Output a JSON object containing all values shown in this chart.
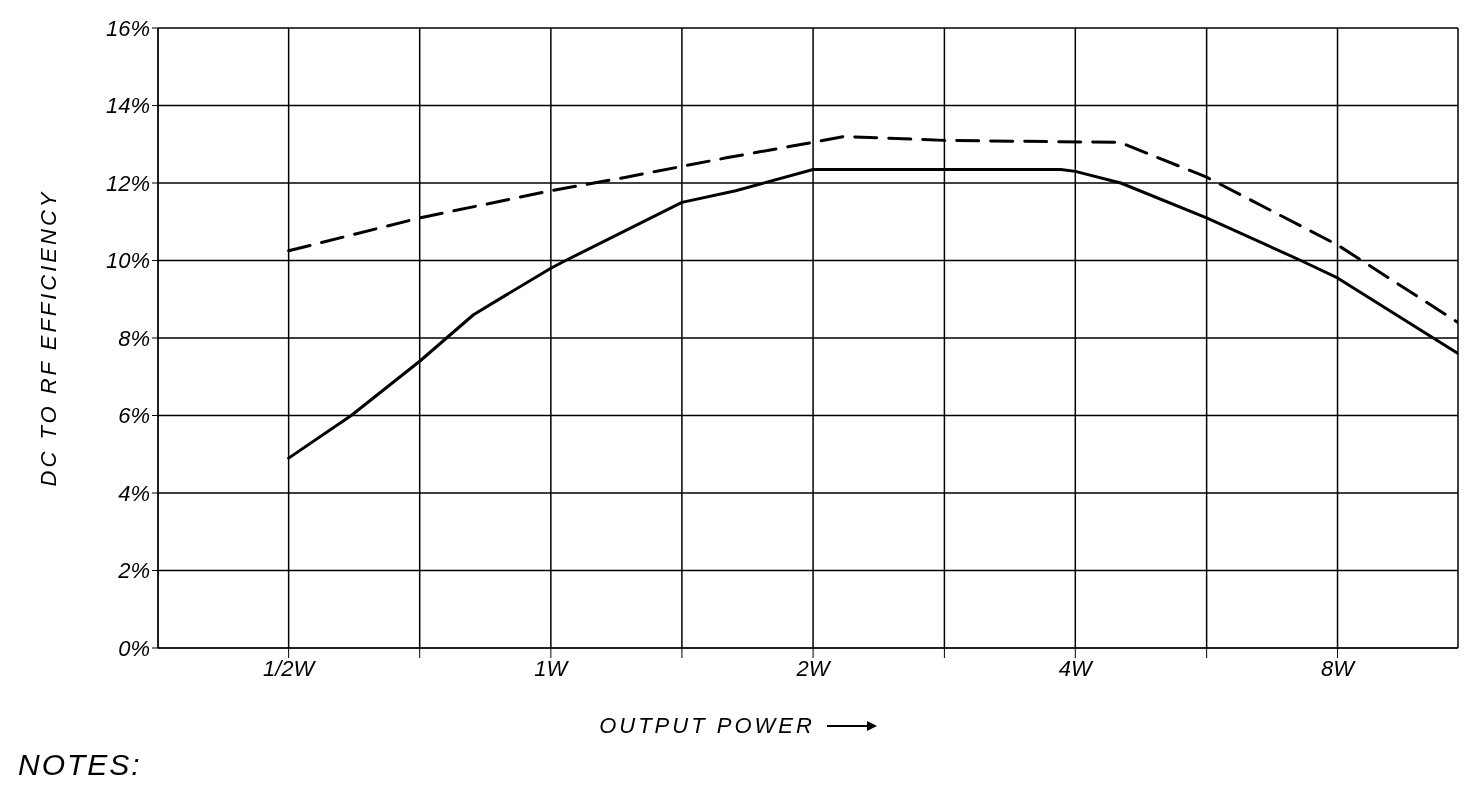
{
  "chart_data": {
    "type": "line",
    "xlabel": "OUTPUT POWER",
    "ylabel": "DC TO RF EFFICIENCY",
    "annotations": [
      "NOTES:"
    ],
    "log": "x",
    "grid": true,
    "marker": "none",
    "xlim": [
      0.354,
      11
    ],
    "xticks": [
      {
        "value": 0.5,
        "label": "1/2W"
      },
      {
        "value": 0.707,
        "label": null
      },
      {
        "value": 1,
        "label": "1W"
      },
      {
        "value": 1.414,
        "label": null
      },
      {
        "value": 2,
        "label": "2W"
      },
      {
        "value": 2.83,
        "label": null
      },
      {
        "value": 4,
        "label": "4W"
      },
      {
        "value": 5.66,
        "label": null
      },
      {
        "value": 8,
        "label": "8W"
      }
    ],
    "ylim": [
      0,
      16
    ],
    "yticks": [
      {
        "value": 0,
        "label": "0%"
      },
      {
        "value": 2,
        "label": "2%"
      },
      {
        "value": 4,
        "label": "4%"
      },
      {
        "value": 6,
        "label": "6%"
      },
      {
        "value": 8,
        "label": "8%"
      },
      {
        "value": 10,
        "label": "10%"
      },
      {
        "value": 12,
        "label": "12%"
      },
      {
        "value": 14,
        "label": "14%"
      },
      {
        "value": 16,
        "label": "16%"
      }
    ],
    "series": [
      {
        "color": "#000000",
        "line_style": "solid",
        "x": [
          0.5,
          0.59,
          0.707,
          0.815,
          0.887,
          1,
          1.04,
          1.414,
          1.63,
          2,
          2.83,
          3.85,
          4,
          4.51,
          5.66,
          7.26,
          8,
          11
        ],
        "values": [
          4.9,
          6.0,
          7.4,
          8.6,
          9.1,
          9.8,
          10.0,
          11.5,
          11.8,
          12.35,
          12.35,
          12.35,
          12.3,
          12.0,
          11.1,
          10.0,
          9.55,
          7.6
        ]
      },
      {
        "color": "#000000",
        "line_style": "dashed",
        "x": [
          0.5,
          0.707,
          1,
          1.22,
          1.59,
          2,
          2.17,
          2.83,
          4.5,
          5.66,
          8,
          11
        ],
        "values": [
          10.25,
          11.1,
          11.8,
          12.15,
          12.65,
          13.05,
          13.2,
          13.1,
          13.05,
          12.15,
          10.4,
          8.4
        ]
      }
    ]
  }
}
